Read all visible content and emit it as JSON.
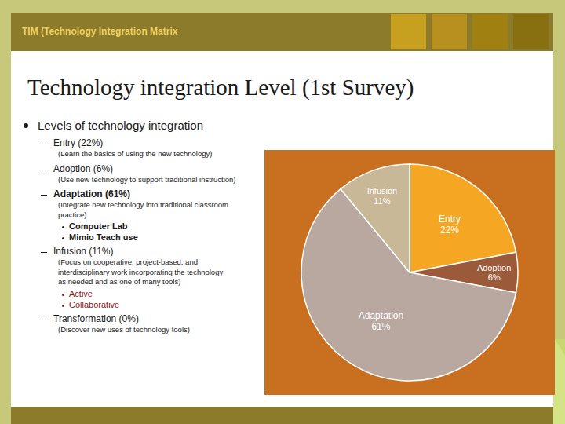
{
  "chart_data": {
    "type": "pie",
    "title": "Technology integration Level (1st Survey)",
    "subtitle": "TIM (Technology Integration Matrix",
    "annotations": [
      "Levels of technology integration",
      "Entry (22%)",
      "(Learn the basics of using the new technology)",
      "Adoption (6%)",
      "(Use new technology to support traditional instruction)",
      "Adaptation (61%)",
      "(Integrate new technology into traditional classroom practice)",
      "Computer Lab",
      "Mimio Teach use",
      "Infusion (11%)",
      "(Focus on cooperative, project-based, and\ninterdisciplinary work incorporating the technology\nas needed and as one of many tools)",
      "Active",
      "Collaborative",
      "Transformation (0%)",
      "(Discover new uses of technology tools)"
    ],
    "categories": [
      "Entry",
      "Adoption",
      "Adaptation",
      "Infusion"
    ],
    "values": [
      22,
      6,
      61,
      11
    ],
    "value_labels": [
      "22%",
      "6%",
      "61%",
      "11%"
    ],
    "colors": [
      "#F5A623",
      "#9B5A3A",
      "#B8A8A0",
      "#C8B898"
    ],
    "data_labels": true
  }
}
